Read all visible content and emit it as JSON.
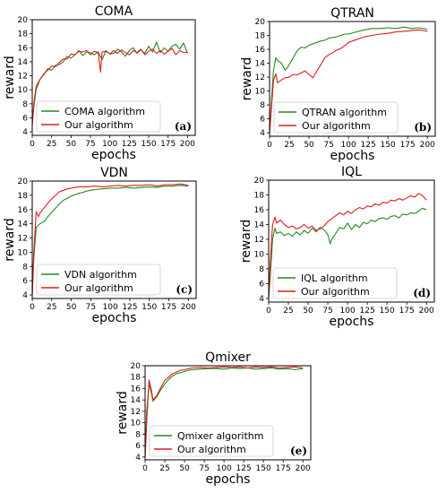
{
  "chart_data": [
    {
      "type": "line",
      "title": "COMA",
      "xlabel": "epochs",
      "ylabel": "reward",
      "panel_label": "(a)",
      "xlim": [
        0,
        210
      ],
      "ylim": [
        3.5,
        20
      ],
      "xticks": [
        0,
        25,
        50,
        75,
        100,
        125,
        150,
        175,
        200
      ],
      "yticks": [
        4,
        6,
        8,
        10,
        12,
        14,
        16,
        18,
        20
      ],
      "legend": "lower-left",
      "grid": false,
      "series": [
        {
          "name": "COMA algorithm",
          "color": "#1f8c1f",
          "x": [
            0,
            2,
            5,
            10,
            15,
            20,
            25,
            30,
            35,
            40,
            45,
            50,
            55,
            60,
            65,
            70,
            75,
            80,
            85,
            90,
            95,
            100,
            105,
            110,
            115,
            120,
            125,
            130,
            135,
            140,
            145,
            150,
            155,
            160,
            165,
            170,
            175,
            180,
            185,
            190,
            195,
            200
          ],
          "y": [
            5.0,
            7.5,
            10.0,
            11.5,
            12.2,
            13.0,
            12.8,
            13.5,
            13.6,
            14.0,
            14.8,
            14.5,
            15.0,
            15.6,
            14.9,
            15.4,
            15.3,
            15.0,
            15.4,
            14.3,
            15.6,
            15.1,
            15.2,
            15.8,
            15.4,
            14.8,
            15.6,
            16.0,
            15.2,
            15.7,
            15.2,
            16.2,
            15.4,
            16.8,
            15.3,
            16.0,
            15.5,
            16.2,
            16.5,
            15.8,
            16.7,
            15.2
          ]
        },
        {
          "name": "Our algorithm",
          "color": "#e41a1c",
          "x": [
            0,
            2,
            5,
            10,
            15,
            20,
            25,
            30,
            35,
            40,
            45,
            50,
            55,
            60,
            65,
            70,
            75,
            80,
            85,
            88,
            90,
            95,
            100,
            105,
            110,
            115,
            120,
            125,
            130,
            135,
            140,
            145,
            150,
            155,
            160,
            165,
            170,
            175,
            180,
            185,
            190,
            195,
            200
          ],
          "y": [
            5.0,
            8.0,
            10.5,
            11.5,
            12.3,
            12.8,
            13.4,
            13.3,
            13.9,
            14.4,
            14.4,
            15.1,
            15.0,
            15.5,
            15.4,
            15.6,
            15.0,
            15.5,
            15.3,
            12.5,
            15.4,
            15.5,
            15.1,
            15.6,
            15.2,
            15.7,
            15.3,
            15.0,
            15.6,
            15.3,
            15.8,
            15.0,
            15.5,
            15.8,
            15.2,
            15.6,
            15.1,
            15.5,
            15.9,
            15.0,
            15.6,
            15.3,
            15.4
          ]
        }
      ]
    },
    {
      "type": "line",
      "title": "QTRAN",
      "xlabel": "epochs",
      "ylabel": "reward",
      "panel_label": "(b)",
      "xlim": [
        0,
        210
      ],
      "ylim": [
        3.5,
        20
      ],
      "xticks": [
        0,
        25,
        50,
        75,
        100,
        125,
        150,
        175,
        200
      ],
      "yticks": [
        4,
        6,
        8,
        10,
        12,
        14,
        16,
        18,
        20
      ],
      "legend": "lower-left",
      "grid": false,
      "series": [
        {
          "name": "QTRAN algorithm",
          "color": "#1f8c1f",
          "x": [
            0,
            2,
            5,
            8,
            10,
            15,
            20,
            25,
            30,
            35,
            40,
            45,
            50,
            55,
            60,
            65,
            70,
            75,
            80,
            85,
            90,
            95,
            100,
            110,
            120,
            130,
            140,
            150,
            160,
            170,
            180,
            190,
            200
          ],
          "y": [
            4.0,
            8.0,
            13.0,
            14.8,
            14.4,
            14.0,
            13.0,
            13.8,
            14.8,
            15.8,
            16.3,
            16.2,
            16.6,
            16.8,
            17.0,
            17.2,
            17.3,
            17.6,
            17.7,
            17.8,
            18.0,
            18.2,
            18.2,
            18.5,
            18.8,
            19.0,
            19.0,
            19.1,
            19.0,
            19.2,
            19.0,
            19.1,
            18.9
          ]
        },
        {
          "name": "Our algorithm",
          "color": "#e41a1c",
          "x": [
            0,
            2,
            5,
            8,
            10,
            15,
            20,
            25,
            30,
            35,
            40,
            45,
            50,
            55,
            60,
            65,
            70,
            75,
            80,
            85,
            90,
            95,
            100,
            110,
            120,
            130,
            140,
            150,
            160,
            170,
            180,
            190,
            200
          ],
          "y": [
            4.0,
            7.0,
            11.5,
            12.5,
            11.2,
            11.6,
            11.9,
            12.0,
            12.4,
            12.3,
            12.6,
            12.9,
            12.4,
            11.9,
            12.9,
            13.8,
            14.8,
            15.2,
            15.5,
            15.9,
            16.1,
            16.5,
            17.0,
            17.4,
            17.8,
            18.0,
            18.2,
            18.3,
            18.5,
            18.6,
            18.7,
            18.8,
            18.6
          ]
        }
      ]
    },
    {
      "type": "line",
      "title": "VDN",
      "xlabel": "epochs",
      "ylabel": "reward",
      "panel_label": "(c)",
      "xlim": [
        0,
        210
      ],
      "ylim": [
        3.5,
        20
      ],
      "xticks": [
        0,
        25,
        50,
        75,
        100,
        125,
        150,
        175,
        200
      ],
      "yticks": [
        4,
        6,
        8,
        10,
        12,
        14,
        16,
        18,
        20
      ],
      "legend": "lower-left",
      "grid": false,
      "series": [
        {
          "name": "VDN algorithm",
          "color": "#1f8c1f",
          "x": [
            0,
            2,
            5,
            10,
            15,
            20,
            25,
            30,
            35,
            40,
            45,
            50,
            55,
            60,
            65,
            70,
            75,
            80,
            90,
            100,
            110,
            120,
            130,
            140,
            150,
            160,
            170,
            180,
            190,
            200
          ],
          "y": [
            4.0,
            9.0,
            13.5,
            14.0,
            14.3,
            15.0,
            15.6,
            16.2,
            16.8,
            17.3,
            17.6,
            17.9,
            18.1,
            18.3,
            18.4,
            18.6,
            18.7,
            18.8,
            18.9,
            19.0,
            19.0,
            19.1,
            19.0,
            19.1,
            19.2,
            19.1,
            19.3,
            19.3,
            19.4,
            19.3
          ]
        },
        {
          "name": "Our algorithm",
          "color": "#e41a1c",
          "x": [
            0,
            2,
            5,
            8,
            10,
            15,
            20,
            25,
            30,
            35,
            40,
            45,
            50,
            55,
            60,
            70,
            80,
            90,
            100,
            110,
            120,
            130,
            140,
            150,
            160,
            170,
            180,
            190,
            200
          ],
          "y": [
            4.0,
            10.0,
            15.7,
            15.0,
            15.5,
            16.2,
            16.9,
            17.5,
            18.0,
            18.5,
            18.7,
            18.9,
            19.0,
            19.1,
            19.2,
            19.2,
            19.3,
            19.2,
            19.3,
            19.4,
            19.3,
            19.4,
            19.4,
            19.5,
            19.3,
            19.5,
            19.5,
            19.6,
            19.4
          ]
        }
      ]
    },
    {
      "type": "line",
      "title": "IQL",
      "xlabel": "epochs",
      "ylabel": "reward",
      "panel_label": "(d)",
      "xlim": [
        0,
        210
      ],
      "ylim": [
        3.5,
        20
      ],
      "xticks": [
        0,
        25,
        50,
        75,
        100,
        125,
        150,
        175,
        200
      ],
      "yticks": [
        4,
        6,
        8,
        10,
        12,
        14,
        16,
        18,
        20
      ],
      "legend": "lower-left",
      "grid": false,
      "series": [
        {
          "name": "IQL algorithm",
          "color": "#1f8c1f",
          "x": [
            0,
            2,
            5,
            8,
            10,
            15,
            20,
            25,
            30,
            35,
            40,
            45,
            50,
            55,
            60,
            65,
            70,
            75,
            78,
            80,
            85,
            90,
            95,
            100,
            105,
            110,
            115,
            120,
            125,
            130,
            135,
            140,
            145,
            150,
            155,
            160,
            165,
            170,
            175,
            180,
            185,
            190,
            195,
            200
          ],
          "y": [
            4.0,
            7.0,
            12.0,
            13.5,
            12.8,
            13.0,
            12.5,
            12.8,
            12.4,
            13.0,
            12.6,
            13.2,
            12.8,
            13.5,
            13.0,
            13.6,
            13.3,
            12.6,
            11.4,
            12.0,
            12.8,
            13.6,
            13.4,
            14.2,
            13.3,
            14.0,
            13.6,
            14.3,
            14.1,
            14.6,
            14.4,
            14.8,
            14.9,
            14.7,
            15.1,
            15.2,
            14.9,
            15.4,
            15.3,
            15.6,
            15.5,
            15.8,
            16.2,
            16.0
          ]
        },
        {
          "name": "Our algorithm",
          "color": "#e41a1c",
          "x": [
            0,
            2,
            5,
            8,
            10,
            15,
            20,
            25,
            30,
            35,
            40,
            45,
            50,
            55,
            60,
            65,
            70,
            75,
            80,
            85,
            90,
            95,
            100,
            105,
            110,
            115,
            120,
            125,
            130,
            135,
            140,
            145,
            150,
            155,
            160,
            165,
            170,
            175,
            180,
            185,
            190,
            195,
            200
          ],
          "y": [
            4.0,
            9.0,
            14.0,
            15.0,
            14.2,
            14.6,
            14.0,
            13.6,
            13.8,
            13.4,
            13.6,
            14.0,
            13.5,
            13.8,
            13.2,
            13.4,
            13.8,
            14.4,
            14.8,
            15.2,
            15.6,
            15.3,
            15.8,
            15.5,
            16.0,
            16.3,
            16.1,
            16.5,
            16.4,
            16.8,
            16.6,
            17.0,
            16.9,
            17.3,
            17.2,
            17.5,
            17.3,
            17.6,
            17.9,
            17.7,
            18.2,
            17.9,
            17.3
          ]
        }
      ]
    },
    {
      "type": "line",
      "title": "Qmixer",
      "xlabel": "epochs",
      "ylabel": "reward",
      "panel_label": "(e)",
      "xlim": [
        0,
        210
      ],
      "ylim": [
        3.5,
        20
      ],
      "xticks": [
        0,
        25,
        50,
        75,
        100,
        125,
        150,
        175,
        200
      ],
      "yticks": [
        4,
        6,
        8,
        10,
        12,
        14,
        16,
        18,
        20
      ],
      "legend": "lower-left",
      "grid": false,
      "series": [
        {
          "name": "Qmixer algorithm",
          "color": "#1f8c1f",
          "x": [
            0,
            2,
            5,
            8,
            10,
            15,
            20,
            25,
            30,
            35,
            40,
            45,
            50,
            55,
            60,
            70,
            80,
            90,
            100,
            110,
            120,
            130,
            140,
            150,
            160,
            170,
            180,
            190,
            200
          ],
          "y": [
            4.0,
            12.0,
            16.8,
            15.2,
            13.8,
            14.6,
            15.8,
            16.8,
            17.6,
            18.2,
            18.6,
            18.8,
            19.0,
            19.2,
            19.3,
            19.4,
            19.5,
            19.5,
            19.4,
            19.6,
            19.5,
            19.6,
            19.4,
            19.5,
            19.6,
            19.4,
            19.5,
            19.3,
            19.5
          ]
        },
        {
          "name": "Our algorithm",
          "color": "#e41a1c",
          "x": [
            0,
            2,
            5,
            8,
            10,
            15,
            20,
            25,
            30,
            35,
            40,
            45,
            50,
            55,
            60,
            70,
            80,
            90,
            100,
            110,
            120,
            130,
            140,
            150,
            160,
            170,
            180,
            190,
            200
          ],
          "y": [
            4.0,
            10.0,
            17.5,
            15.8,
            14.0,
            14.8,
            16.2,
            17.4,
            18.0,
            18.6,
            18.9,
            19.2,
            19.3,
            19.5,
            19.6,
            19.7,
            19.6,
            19.7,
            19.8,
            19.7,
            19.8,
            19.6,
            19.8,
            19.7,
            19.8,
            19.6,
            19.7,
            19.8,
            19.6
          ]
        }
      ]
    }
  ]
}
